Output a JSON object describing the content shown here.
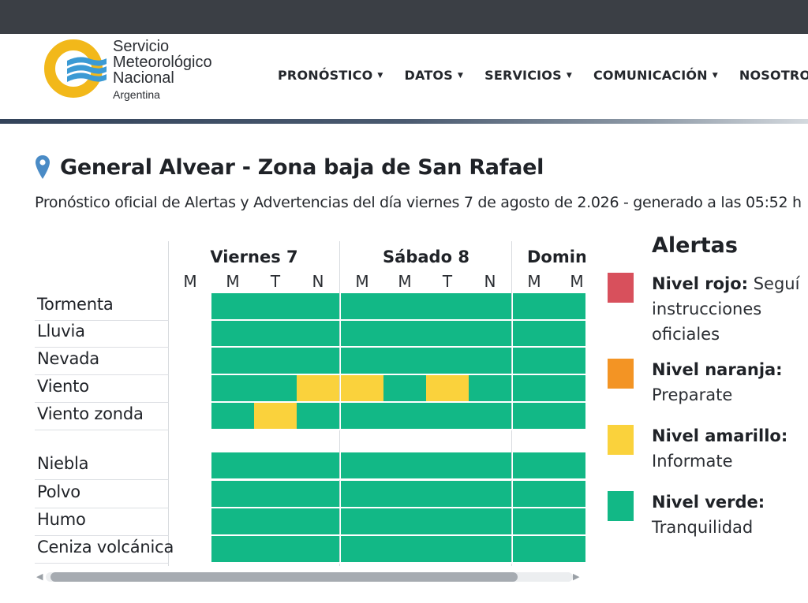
{
  "brand": {
    "line1": "Servicio",
    "line2": "Meteorológico",
    "line3": "Nacional",
    "country": "Argentina",
    "colors": {
      "ring": "#f2b81a",
      "waves": "#3b9ad4"
    }
  },
  "nav": [
    {
      "label": "PRONÓSTICO",
      "icon": "caret-down-icon"
    },
    {
      "label": "DATOS",
      "icon": "caret-down-icon"
    },
    {
      "label": "SERVICIOS",
      "icon": "caret-down-icon"
    },
    {
      "label": "COMUNICACIÓN",
      "icon": "caret-down-icon"
    },
    {
      "label": "NOSOTROS",
      "icon": "caret-down-icon"
    }
  ],
  "page": {
    "title": "General Alvear - Zona baja de San Rafael",
    "title_icon": "location-pin-icon",
    "subtitle": "Pronóstico oficial de Alertas y Advertencias del día viernes 7 de agosto de 2.026 - generado a las 05:52 h"
  },
  "days": [
    {
      "label": "Viernes 7",
      "periods": [
        "M",
        "M",
        "T",
        "N"
      ]
    },
    {
      "label": "Sábado 8",
      "periods": [
        "M",
        "M",
        "T",
        "N"
      ]
    },
    {
      "label": "Domingo",
      "periods": [
        "M",
        "M"
      ]
    }
  ],
  "phenomena": [
    "Tormenta",
    "Lluvia",
    "Nevada",
    "Viento",
    "Viento zonda",
    "Niebla",
    "Polvo",
    "Humo",
    "Ceniza volcánica"
  ],
  "levels": {
    "R": "#d8505c",
    "O": "#f39424",
    "Y": "#fad23c",
    "G": "#12b886",
    "E": "#ffffff"
  },
  "grid": [
    [
      "E",
      "G",
      "G",
      "G",
      "G",
      "G",
      "G",
      "G",
      "G",
      "G"
    ],
    [
      "E",
      "G",
      "G",
      "G",
      "G",
      "G",
      "G",
      "G",
      "G",
      "G"
    ],
    [
      "E",
      "G",
      "G",
      "G",
      "G",
      "G",
      "G",
      "G",
      "G",
      "G"
    ],
    [
      "E",
      "G",
      "G",
      "Y",
      "Y",
      "G",
      "Y",
      "G",
      "G",
      "G"
    ],
    [
      "E",
      "G",
      "Y",
      "G",
      "G",
      "G",
      "G",
      "G",
      "G",
      "G"
    ],
    [
      "E",
      "G",
      "G",
      "G",
      "G",
      "G",
      "G",
      "G",
      "G",
      "G"
    ],
    [
      "E",
      "G",
      "G",
      "G",
      "G",
      "G",
      "G",
      "G",
      "G",
      "G"
    ],
    [
      "E",
      "G",
      "G",
      "G",
      "G",
      "G",
      "G",
      "G",
      "G",
      "G"
    ],
    [
      "E",
      "G",
      "G",
      "G",
      "G",
      "G",
      "G",
      "G",
      "G",
      "G"
    ]
  ],
  "legend": {
    "title": "Alertas",
    "items": [
      {
        "level": "Nivel rojo:",
        "text": "Seguí instrucciones oficiales",
        "color": "#d8505c"
      },
      {
        "level": "Nivel naranja:",
        "text": "Preparate",
        "color": "#f39424"
      },
      {
        "level": "Nivel amarillo:",
        "text": "Informate",
        "color": "#fad23c"
      },
      {
        "level": "Nivel verde:",
        "text": "Tranquilidad",
        "color": "#12b886"
      }
    ]
  }
}
